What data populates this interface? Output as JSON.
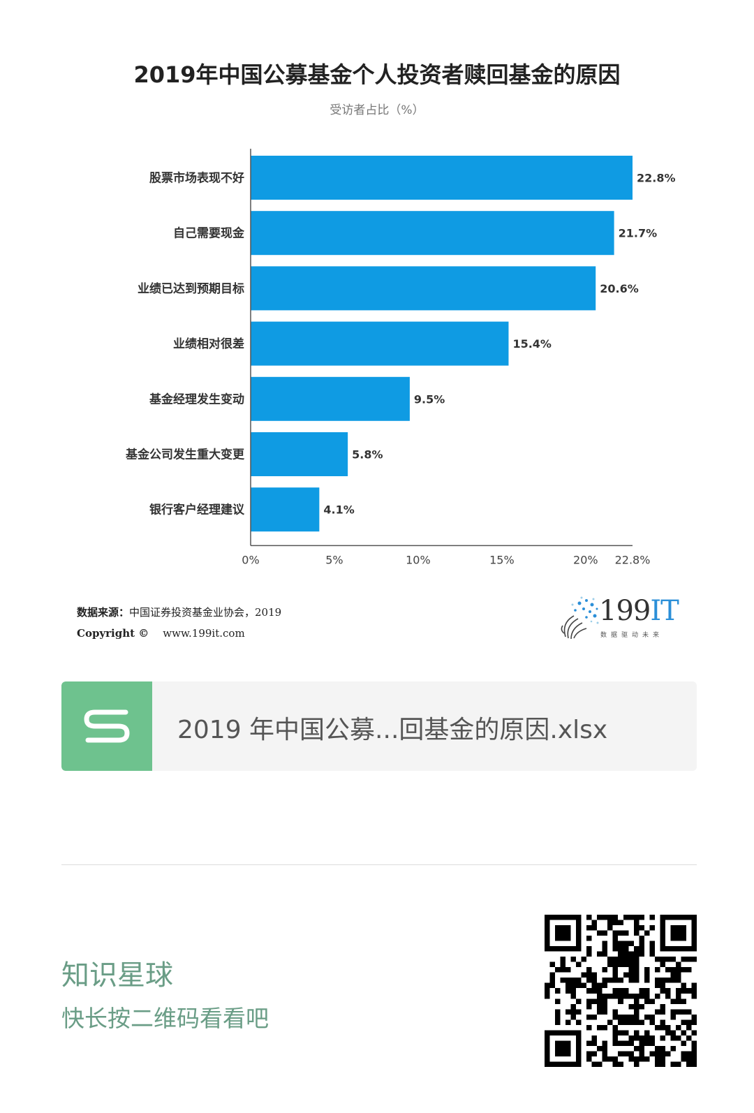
{
  "chart_data": {
    "type": "bar",
    "orientation": "horizontal",
    "title": "2019年中国公募基金个人投资者赎回基金的原因",
    "subtitle": "受访者占比（%）",
    "categories": [
      "股票市场表现不好",
      "自己需要现金",
      "业绩已达到预期目标",
      "业绩相对很差",
      "基金经理发生变动",
      "基金公司发生重大变更",
      "银行客户经理建议"
    ],
    "values": [
      22.8,
      21.7,
      20.6,
      15.4,
      9.5,
      5.8,
      4.1
    ],
    "value_labels": [
      "22.8%",
      "21.7%",
      "20.6%",
      "15.4%",
      "9.5%",
      "5.8%",
      "4.1%"
    ],
    "x_ticks": [
      0,
      5,
      10,
      15,
      20,
      22.8
    ],
    "x_tick_labels": [
      "0%",
      "5%",
      "10%",
      "15%",
      "20%",
      "22.8%"
    ],
    "xlim": [
      0,
      22.8
    ],
    "grid": false,
    "bar_color": "#0f9be3"
  },
  "source": {
    "label": "数据来源：",
    "text": "中国证券投资基金业协会，2019",
    "copyright": "Copyright ©",
    "url": "www.199it.com"
  },
  "logo": {
    "brand_num": "199",
    "brand_it": "IT",
    "tagline": "数据驱动未来"
  },
  "file_card": {
    "icon": "spreadsheet-s-icon",
    "file_name": "2019 年中国公募...回基金的原因.xlsx",
    "icon_color": "#6ec28e"
  },
  "planet": {
    "title": "知识星球",
    "subtitle": "快长按二维码看看吧"
  },
  "qr": {
    "icon": "qr-code-icon"
  }
}
